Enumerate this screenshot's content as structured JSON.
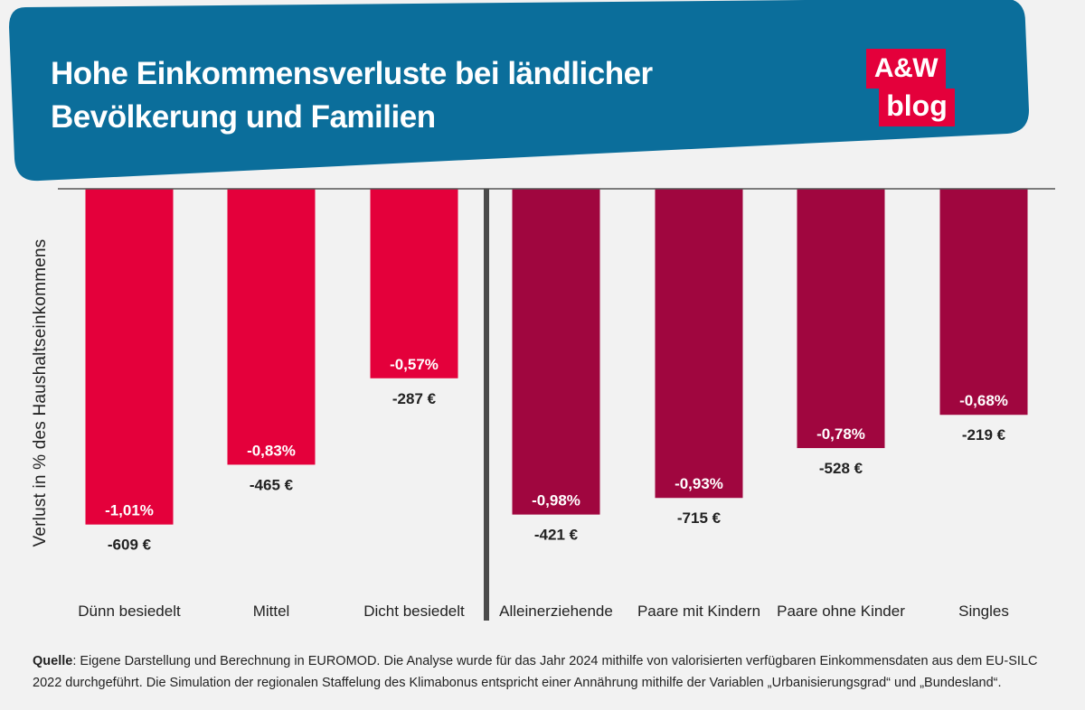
{
  "title": "Hohe Einkommensverluste bei ländlicher Bevölkerung und Familien",
  "logo": {
    "line1": "A&W",
    "line2": "blog"
  },
  "colors": {
    "banner": "#0b6e9b",
    "region_bars": "#e4003b",
    "household_bars": "#a0063f",
    "divider": "#4a4a4a",
    "axis": "#555555"
  },
  "chart_data": {
    "type": "bar",
    "orientation": "vertical-negative",
    "ylabel": "Verlust in % des Haushaltseinkommens",
    "ylim": [
      -1.2,
      0
    ],
    "groups": [
      "region",
      "household"
    ],
    "categories": [
      "Dünn besiedelt",
      "Mittel",
      "Dicht besiedelt",
      "Alleinerziehende",
      "Paare mit Kindern",
      "Paare ohne Kinder",
      "Singles"
    ],
    "series": [
      {
        "name": "Verlust in %",
        "values": [
          -1.01,
          -0.83,
          -0.57,
          -0.98,
          -0.93,
          -0.78,
          -0.68
        ],
        "labels": [
          "-1,01%",
          "-0,83%",
          "-0,57%",
          "-0,98%",
          "-0,93%",
          "-0,78%",
          "-0,68%"
        ]
      },
      {
        "name": "Verlust in €",
        "values": [
          -609,
          -465,
          -287,
          -421,
          -715,
          -528,
          -219
        ],
        "labels": [
          "-609 €",
          "-465 €",
          "-287 €",
          "-421 €",
          "-715 €",
          "-528 €",
          "-219 €"
        ]
      }
    ],
    "category_groups": [
      "region",
      "region",
      "region",
      "household",
      "household",
      "household",
      "household"
    ]
  },
  "footer": {
    "source_label": "Quelle",
    "source_text": ": Eigene Darstellung und Berechnung in EUROMOD. Die Analyse wurde für das Jahr 2024 mithilfe von valorisierten verfügbaren Einkommensdaten aus dem EU-SILC 2022 durchgeführt. Die Simulation der regionalen Staffelung des Klimabonus entspricht einer Annährung mithilfe der Variablen „Urbanisierungsgrad“ und „Bundesland“."
  }
}
